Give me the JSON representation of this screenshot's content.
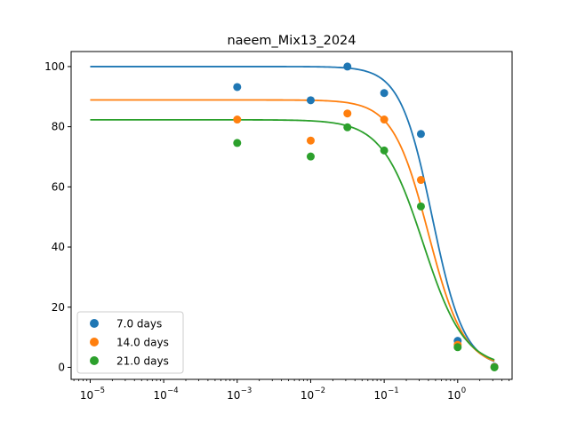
{
  "chart_data": {
    "type": "scatter",
    "title": "naeem_Mix13_2024",
    "xlabel": "",
    "ylabel": "",
    "xscale": "log",
    "xlim": [
      5.5e-06,
      5.5
    ],
    "ylim": [
      -4,
      105
    ],
    "grid": false,
    "legend_position": "lower-left",
    "x_ticks": [
      {
        "value": 1e-05,
        "label": "10",
        "exp": "−5"
      },
      {
        "value": 0.0001,
        "label": "10",
        "exp": "−4"
      },
      {
        "value": 0.001,
        "label": "10",
        "exp": "−3"
      },
      {
        "value": 0.01,
        "label": "10",
        "exp": "−2"
      },
      {
        "value": 0.1,
        "label": "10",
        "exp": "−1"
      },
      {
        "value": 1,
        "label": "10",
        "exp": "0"
      }
    ],
    "y_ticks": [
      {
        "value": 0,
        "label": "0"
      },
      {
        "value": 20,
        "label": "20"
      },
      {
        "value": 40,
        "label": "40"
      },
      {
        "value": 60,
        "label": "60"
      },
      {
        "value": 80,
        "label": "80"
      },
      {
        "value": 100,
        "label": "100"
      }
    ],
    "series": [
      {
        "name": "7.0 days",
        "color": "#1f77b4",
        "points": [
          [
            0.001,
            93.2
          ],
          [
            0.01,
            88.8
          ],
          [
            0.0316,
            100.0
          ],
          [
            0.1,
            91.2
          ],
          [
            0.316,
            77.6
          ],
          [
            1.0,
            8.8
          ],
          [
            3.16,
            0.2
          ]
        ],
        "fit": {
          "top": 100.0,
          "ec50": 0.45,
          "hill": 2.0
        }
      },
      {
        "name": "14.0 days",
        "color": "#ff7f0e",
        "points": [
          [
            0.001,
            82.4
          ],
          [
            0.01,
            75.4
          ],
          [
            0.0316,
            84.4
          ],
          [
            0.1,
            82.4
          ],
          [
            0.316,
            62.3
          ],
          [
            1.0,
            7.5
          ],
          [
            3.16,
            0.1
          ]
        ],
        "fit": {
          "top": 88.9,
          "ec50": 0.4,
          "hill": 1.8
        }
      },
      {
        "name": "21.0 days",
        "color": "#2ca02c",
        "points": [
          [
            0.001,
            74.6
          ],
          [
            0.01,
            70.1
          ],
          [
            0.0316,
            79.8
          ],
          [
            0.1,
            72.1
          ],
          [
            0.316,
            53.5
          ],
          [
            1.0,
            6.7
          ],
          [
            3.16,
            0.0
          ]
        ],
        "fit": {
          "top": 82.3,
          "ec50": 0.34,
          "hill": 1.55
        }
      }
    ]
  }
}
